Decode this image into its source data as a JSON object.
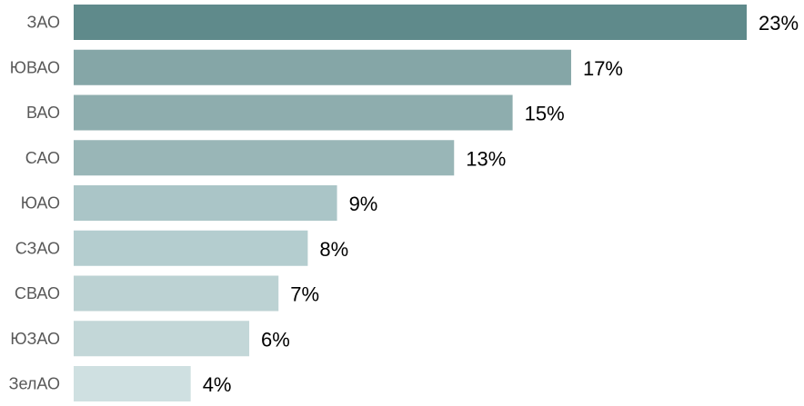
{
  "chart_data": {
    "type": "bar",
    "orientation": "horizontal",
    "categories": [
      "ЗАО",
      "ЮВАО",
      "ВАО",
      "САО",
      "ЮАО",
      "СЗАО",
      "СВАО",
      "ЮЗАО",
      "ЗелАО"
    ],
    "values": [
      23,
      17,
      15,
      13,
      9,
      8,
      7,
      6,
      4
    ],
    "value_labels": [
      "23%",
      "17%",
      "15%",
      "13%",
      "9%",
      "8%",
      "7%",
      "6%",
      "4%"
    ],
    "bar_colors": [
      "#5f8a8b",
      "#85a6a7",
      "#8eadae",
      "#99b6b7",
      "#aac5c7",
      "#b4cdcf",
      "#bcd2d3",
      "#c3d7d8",
      "#cfe0e1"
    ],
    "xlim": [
      0,
      23
    ],
    "grid": false,
    "legend": "none"
  }
}
